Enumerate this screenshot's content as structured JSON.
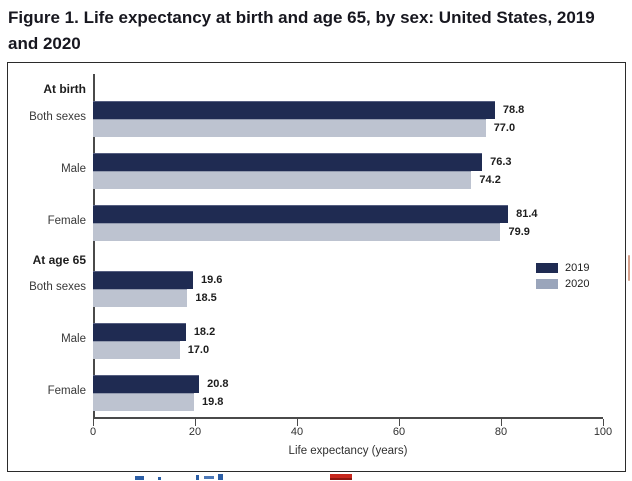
{
  "figure_title": "Figure 1. Life expectancy at birth and age 65, by sex: United States, 2019 and 2020",
  "colors": {
    "bar_2019": "#1f2b52",
    "bar_2020": "#bdc3d0",
    "legend_2019": "#1f2b52",
    "legend_2020": "#9aa5bb",
    "axis": "#4a4a4a",
    "panel_border": "#2b2b2b",
    "title_text": "#17171f",
    "footer_link_fragment": "#2d5fa6",
    "footer_icon_fragment": "#c8281e",
    "scrollbar_fragment": "#d6a18d"
  },
  "legend": {
    "items": [
      {
        "label": "2019"
      },
      {
        "label": "2020"
      }
    ]
  },
  "chart_data": {
    "type": "bar",
    "orientation": "horizontal",
    "title": "Figure 1. Life expectancy at birth and age 65, by sex: United States, 2019 and 2020",
    "xlabel": "Life expectancy (years)",
    "ylabel": "",
    "xlim": [
      0,
      100
    ],
    "xticks": [
      "0",
      "20",
      "40",
      "60",
      "80",
      "100"
    ],
    "xtick_values": [
      0,
      20,
      40,
      60,
      80,
      100
    ],
    "grid": false,
    "legend_position": "middle-right",
    "series": [
      {
        "name": "2019",
        "color": "#1f2b52"
      },
      {
        "name": "2020",
        "color": "#bdc3d0"
      }
    ],
    "sections": [
      {
        "header": "At birth",
        "rows": [
          {
            "category": "Both sexes",
            "bars": [
              {
                "year": "2019",
                "value": 78.8,
                "label": "78.8"
              },
              {
                "year": "2020",
                "value": 77.0,
                "label": "77.0"
              }
            ]
          },
          {
            "category": "Male",
            "bars": [
              {
                "year": "2019",
                "value": 76.3,
                "label": "76.3"
              },
              {
                "year": "2020",
                "value": 74.2,
                "label": "74.2"
              }
            ]
          },
          {
            "category": "Female",
            "bars": [
              {
                "year": "2019",
                "value": 81.4,
                "label": "81.4"
              },
              {
                "year": "2020",
                "value": 79.9,
                "label": "79.9"
              }
            ]
          }
        ]
      },
      {
        "header": "At age 65",
        "rows": [
          {
            "category": "Both sexes",
            "bars": [
              {
                "year": "2019",
                "value": 19.6,
                "label": "19.6"
              },
              {
                "year": "2020",
                "value": 18.5,
                "label": "18.5"
              }
            ]
          },
          {
            "category": "Male",
            "bars": [
              {
                "year": "2019",
                "value": 18.2,
                "label": "18.2"
              },
              {
                "year": "2020",
                "value": 17.0,
                "label": "17.0"
              }
            ]
          },
          {
            "category": "Female",
            "bars": [
              {
                "year": "2019",
                "value": 20.8,
                "label": "20.8"
              },
              {
                "year": "2020",
                "value": 19.8,
                "label": "19.8"
              }
            ]
          }
        ]
      }
    ]
  }
}
